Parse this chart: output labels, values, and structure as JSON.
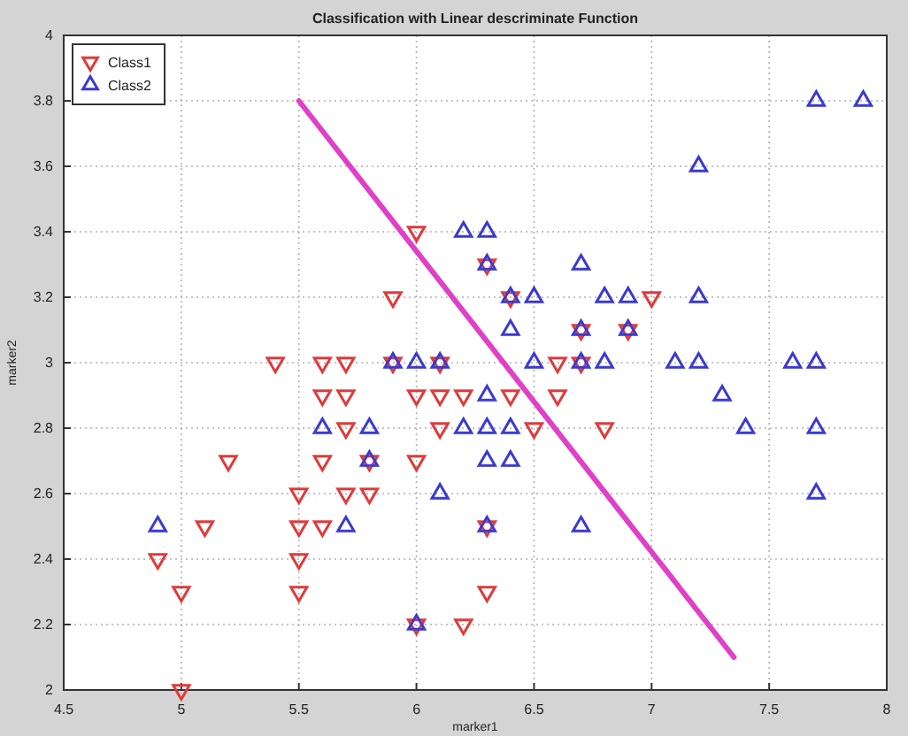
{
  "chart_data": {
    "type": "scatter",
    "title": "Classification with Linear descriminate Function",
    "xlabel": "marker1",
    "ylabel": "marker2",
    "xlim": [
      4.5,
      8
    ],
    "xticks": [
      4.5,
      5,
      5.5,
      6,
      6.5,
      7,
      7.5,
      8
    ],
    "ylim": [
      2,
      4
    ],
    "yticks": [
      2,
      2.2,
      2.4,
      2.6,
      2.8,
      3,
      3.2,
      3.4,
      3.6,
      3.8,
      4
    ],
    "grid": true,
    "legend": "top left",
    "series": [
      {
        "name": "Class1",
        "marker": "triangle-down",
        "color": "#e03a3a",
        "x": [
          6.0,
          6.3,
          5.9,
          6.4,
          7.0,
          6.7,
          6.9,
          5.4,
          5.6,
          5.7,
          5.9,
          6.1,
          6.6,
          6.7,
          5.6,
          5.7,
          6.0,
          6.1,
          6.2,
          6.4,
          6.6,
          5.7,
          6.1,
          6.5,
          6.8,
          5.2,
          5.6,
          5.8,
          6.0,
          5.5,
          5.7,
          5.8,
          5.1,
          5.5,
          5.6,
          6.3,
          4.9,
          5.5,
          5.0,
          5.5,
          6.3,
          6.0,
          6.2,
          5.0
        ],
        "values": [
          3.4,
          3.3,
          3.2,
          3.2,
          3.2,
          3.1,
          3.1,
          3.0,
          3.0,
          3.0,
          3.0,
          3.0,
          3.0,
          3.0,
          2.9,
          2.9,
          2.9,
          2.9,
          2.9,
          2.9,
          2.9,
          2.8,
          2.8,
          2.8,
          2.8,
          2.7,
          2.7,
          2.7,
          2.7,
          2.6,
          2.6,
          2.6,
          2.5,
          2.5,
          2.5,
          2.5,
          2.4,
          2.4,
          2.3,
          2.3,
          2.3,
          2.2,
          2.2,
          2.0
        ]
      },
      {
        "name": "Class2",
        "marker": "triangle",
        "color": "#3a3ad0",
        "x": [
          7.7,
          7.9,
          7.2,
          6.2,
          6.3,
          6.3,
          6.7,
          6.4,
          6.5,
          6.8,
          6.9,
          7.2,
          6.4,
          6.7,
          6.9,
          5.9,
          6.0,
          6.1,
          6.5,
          6.7,
          6.8,
          7.1,
          7.2,
          7.6,
          7.7,
          6.3,
          7.3,
          5.6,
          5.8,
          6.2,
          6.3,
          6.4,
          7.4,
          7.7,
          5.8,
          6.3,
          6.4,
          6.1,
          7.7,
          4.9,
          5.7,
          6.3,
          6.7,
          6.0
        ],
        "values": [
          3.8,
          3.8,
          3.6,
          3.4,
          3.4,
          3.3,
          3.3,
          3.2,
          3.2,
          3.2,
          3.2,
          3.2,
          3.1,
          3.1,
          3.1,
          3.0,
          3.0,
          3.0,
          3.0,
          3.0,
          3.0,
          3.0,
          3.0,
          3.0,
          3.0,
          2.9,
          2.9,
          2.8,
          2.8,
          2.8,
          2.8,
          2.8,
          2.8,
          2.8,
          2.7,
          2.7,
          2.7,
          2.6,
          2.6,
          2.5,
          2.5,
          2.5,
          2.5,
          2.2
        ]
      },
      {
        "type": "line",
        "color": "#e040c8",
        "line_style": "solid",
        "x": [
          5.5,
          7.35
        ],
        "values": [
          3.8,
          2.1
        ]
      }
    ]
  }
}
